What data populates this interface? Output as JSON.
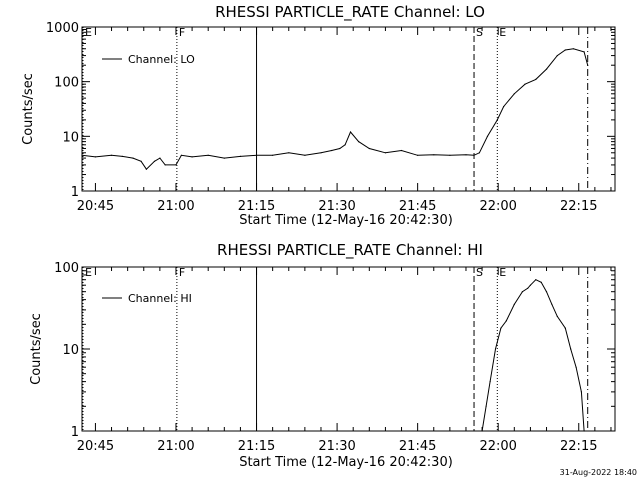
{
  "chart_data": [
    {
      "type": "line",
      "title": "RHESSI PARTICLE_RATE Channel: LO",
      "xlabel": "Start Time (12-May-16 20:42:30)",
      "ylabel": "Counts/sec",
      "log_y": true,
      "ylim": [
        1,
        1000
      ],
      "xlim": [
        "20:42:30",
        "22:21:45"
      ],
      "y_ticks": [
        "1",
        "10",
        "100",
        "1000"
      ],
      "x_ticks": [
        "20:45",
        "21:00",
        "21:15",
        "21:30",
        "21:45",
        "22:00",
        "22:15"
      ],
      "legend": {
        "position": "top-left",
        "entries": [
          "Channel: LO"
        ]
      },
      "markers": [
        {
          "label": "E",
          "time": "20:42:30",
          "style": "dotted"
        },
        {
          "label": "F",
          "time": "21:00:10",
          "style": "dotted"
        },
        {
          "label": "",
          "time": "21:15:00",
          "style": "solid"
        },
        {
          "label": "S",
          "time": "21:55:30",
          "style": "dashed"
        },
        {
          "label": "E",
          "time": "21:59:50",
          "style": "dotted"
        },
        {
          "label": "",
          "time": "22:16:40",
          "style": "dashdot"
        }
      ],
      "series": [
        {
          "name": "Channel: LO",
          "x": [
            "20:42:30",
            "20:45:00",
            "20:48:00",
            "20:50:00",
            "20:52:00",
            "20:53:30",
            "20:54:30",
            "20:56:00",
            "20:57:00",
            "20:58:00",
            "21:00:00",
            "21:01:00",
            "21:03:00",
            "21:06:00",
            "21:09:00",
            "21:12:00",
            "21:15:00",
            "21:18:00",
            "21:21:00",
            "21:24:00",
            "21:27:00",
            "21:29:00",
            "21:30:30",
            "21:31:30",
            "21:32:30",
            "21:34:00",
            "21:36:00",
            "21:39:00",
            "21:42:00",
            "21:45:00",
            "21:48:00",
            "21:51:00",
            "21:54:00",
            "21:55:30",
            "21:56:30",
            "21:58:00",
            "21:59:50",
            "22:01:00",
            "22:03:00",
            "22:05:00",
            "22:07:00",
            "22:09:00",
            "22:11:00",
            "22:12:30",
            "22:14:00",
            "22:16:00",
            "22:16:40"
          ],
          "values": [
            4.5,
            4.2,
            4.5,
            4.3,
            4.0,
            3.5,
            2.5,
            3.5,
            4.0,
            3.0,
            3.0,
            4.5,
            4.2,
            4.5,
            4.0,
            4.3,
            4.5,
            4.5,
            5.0,
            4.5,
            5.0,
            5.5,
            6.0,
            7.0,
            12.0,
            8.0,
            6.0,
            5.0,
            5.5,
            4.5,
            4.6,
            4.5,
            4.6,
            4.5,
            5.0,
            10.0,
            20.0,
            35.0,
            60.0,
            90.0,
            110.0,
            170.0,
            300.0,
            380.0,
            400.0,
            350.0,
            200.0
          ]
        }
      ]
    },
    {
      "type": "line",
      "title": "RHESSI PARTICLE_RATE Channel: HI",
      "xlabel": "Start Time (12-May-16 20:42:30)",
      "ylabel": "Counts/sec",
      "log_y": true,
      "ylim": [
        1,
        100
      ],
      "xlim": [
        "20:42:30",
        "22:21:45"
      ],
      "y_ticks": [
        "1",
        "10",
        "100"
      ],
      "x_ticks": [
        "20:45",
        "21:00",
        "21:15",
        "21:30",
        "21:45",
        "22:00",
        "22:15"
      ],
      "legend": {
        "position": "top-left",
        "entries": [
          "Channel: HI"
        ]
      },
      "markers": [
        {
          "label": "E",
          "time": "20:42:30",
          "style": "dotted"
        },
        {
          "label": "F",
          "time": "21:00:10",
          "style": "dotted"
        },
        {
          "label": "",
          "time": "21:15:00",
          "style": "solid"
        },
        {
          "label": "S",
          "time": "21:55:30",
          "style": "dashed"
        },
        {
          "label": "E",
          "time": "21:59:50",
          "style": "dotted"
        },
        {
          "label": "",
          "time": "22:16:40",
          "style": "dashdot"
        }
      ],
      "series": [
        {
          "name": "Channel: HI",
          "x": [
            "21:57:00",
            "21:57:45",
            "21:58:30",
            "21:59:30",
            "22:00:30",
            "22:01:30",
            "22:03:00",
            "22:04:30",
            "22:05:30",
            "22:06:00",
            "22:07:00",
            "22:08:00",
            "22:09:00",
            "22:10:00",
            "22:11:00",
            "22:12:30",
            "22:13:30",
            "22:14:30",
            "22:15:30",
            "22:16:00"
          ],
          "values": [
            1.0,
            2.0,
            4.0,
            10.0,
            18.0,
            22.0,
            35.0,
            50.0,
            55.0,
            60.0,
            70.0,
            65.0,
            50.0,
            35.0,
            25.0,
            18.0,
            10.0,
            6.0,
            3.0,
            1.0
          ]
        }
      ]
    }
  ],
  "footer": {
    "timestamp": "31-Aug-2022 18:40"
  }
}
